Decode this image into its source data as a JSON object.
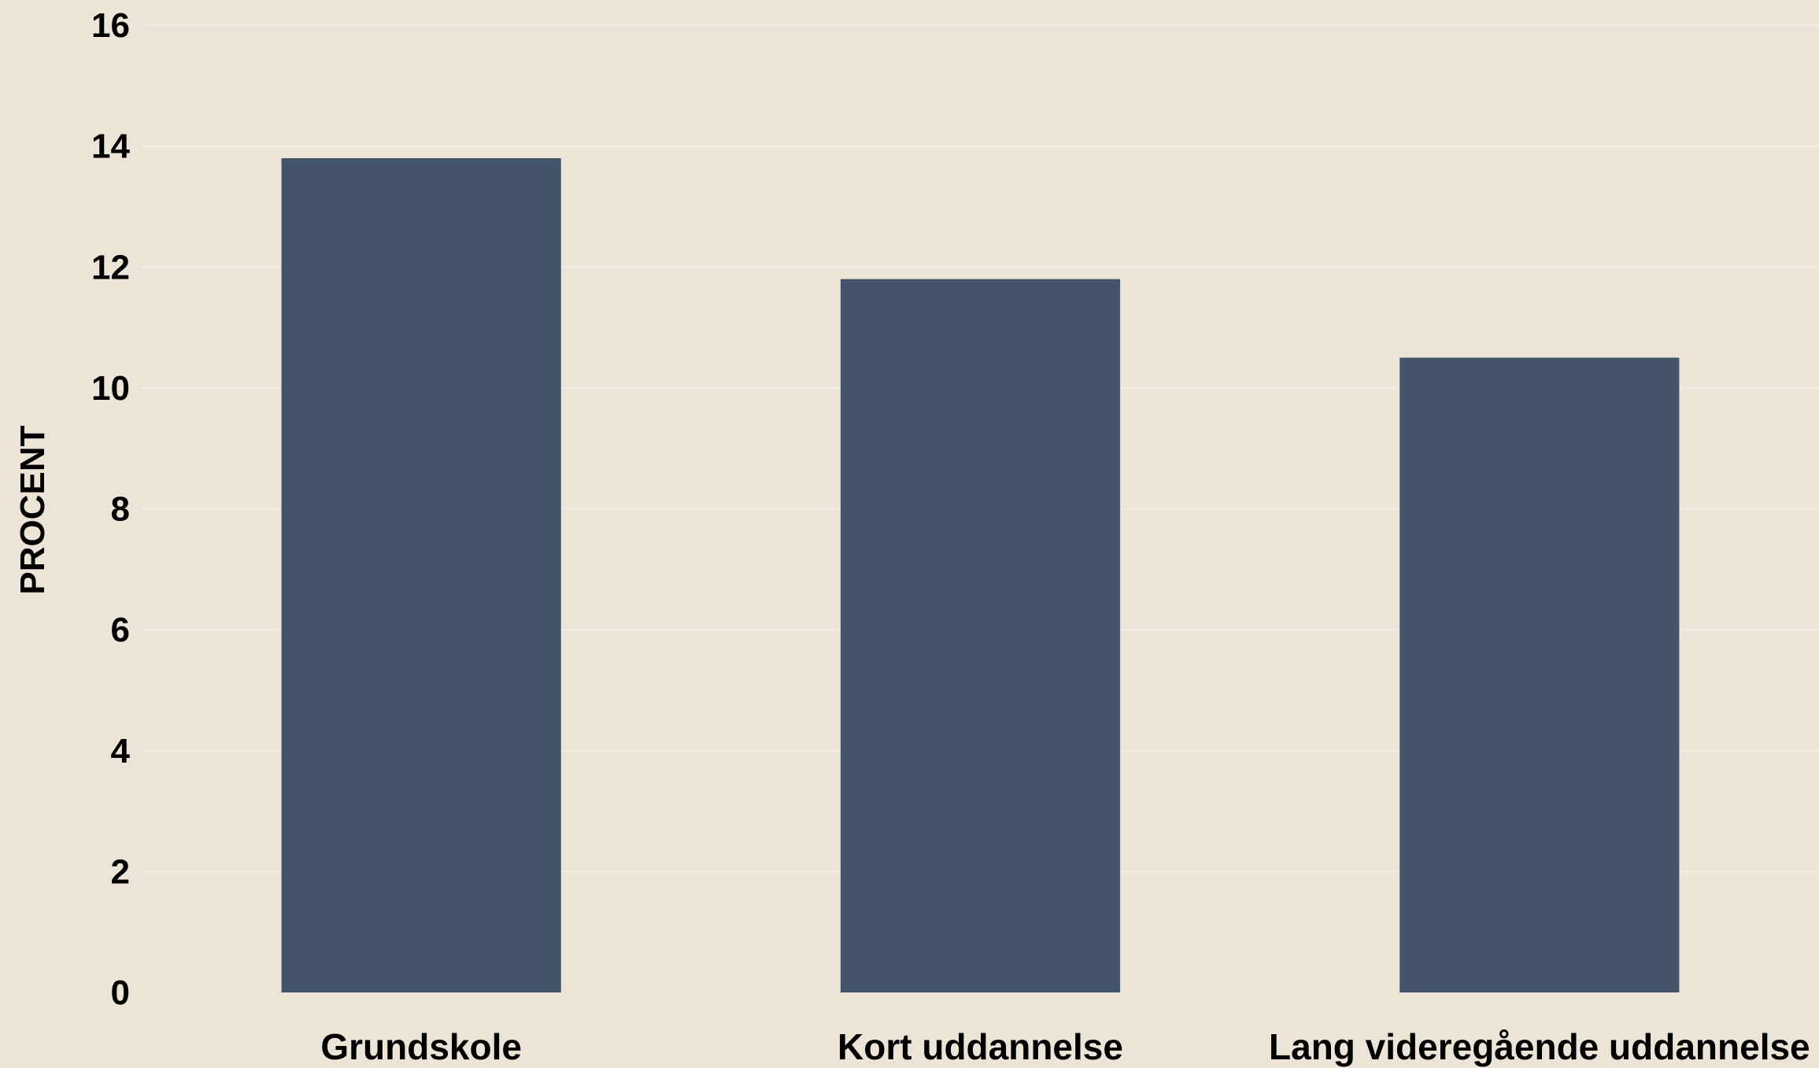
{
  "chart_data": {
    "type": "bar",
    "categories": [
      "Grundskole",
      "Kort uddannelse",
      "Lang videregående uddannelse"
    ],
    "values": [
      13.8,
      11.8,
      10.5
    ],
    "title": "",
    "xlabel": "",
    "ylabel": "PROCENT",
    "ylim": [
      0,
      16
    ],
    "yticks": [
      0,
      2,
      4,
      6,
      8,
      10,
      12,
      14,
      16
    ],
    "grid": true,
    "bar_color": "#44546a",
    "grid_color": "#f3ede4",
    "background_color": "#ede4d8"
  }
}
